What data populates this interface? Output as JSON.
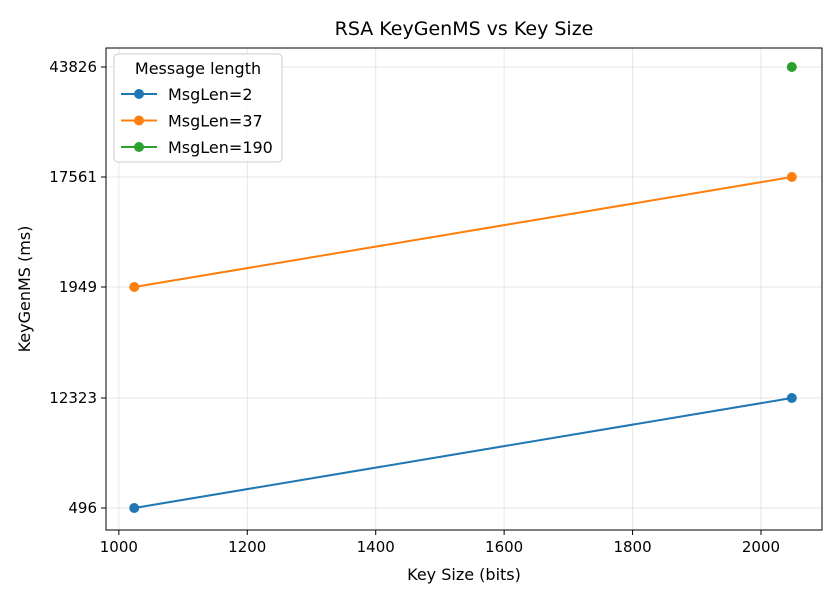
{
  "chart_data": {
    "type": "line",
    "title": "RSA KeyGenMS vs Key Size",
    "xlabel": "Key Size (bits)",
    "ylabel": "KeyGenMS (ms)",
    "xlim": [
      980,
      2095
    ],
    "xticks": [
      1000,
      1200,
      1400,
      1600,
      1800,
      2000
    ],
    "ycategories": [
      "496",
      "12323",
      "1949",
      "17561",
      "43826"
    ],
    "grid": true,
    "legend": {
      "title": "Message length",
      "placement": "top-left"
    },
    "series": [
      {
        "name": "MsgLen=2",
        "color": "#1f77b4",
        "points": [
          {
            "x": 1024,
            "y": "496"
          },
          {
            "x": 2048,
            "y": "12323"
          }
        ]
      },
      {
        "name": "MsgLen=37",
        "color": "#ff7f0e",
        "points": [
          {
            "x": 1024,
            "y": "1949"
          },
          {
            "x": 2048,
            "y": "17561"
          }
        ]
      },
      {
        "name": "MsgLen=190",
        "color": "#2ca02c",
        "points": [
          {
            "x": 2048,
            "y": "43826"
          }
        ]
      }
    ]
  }
}
